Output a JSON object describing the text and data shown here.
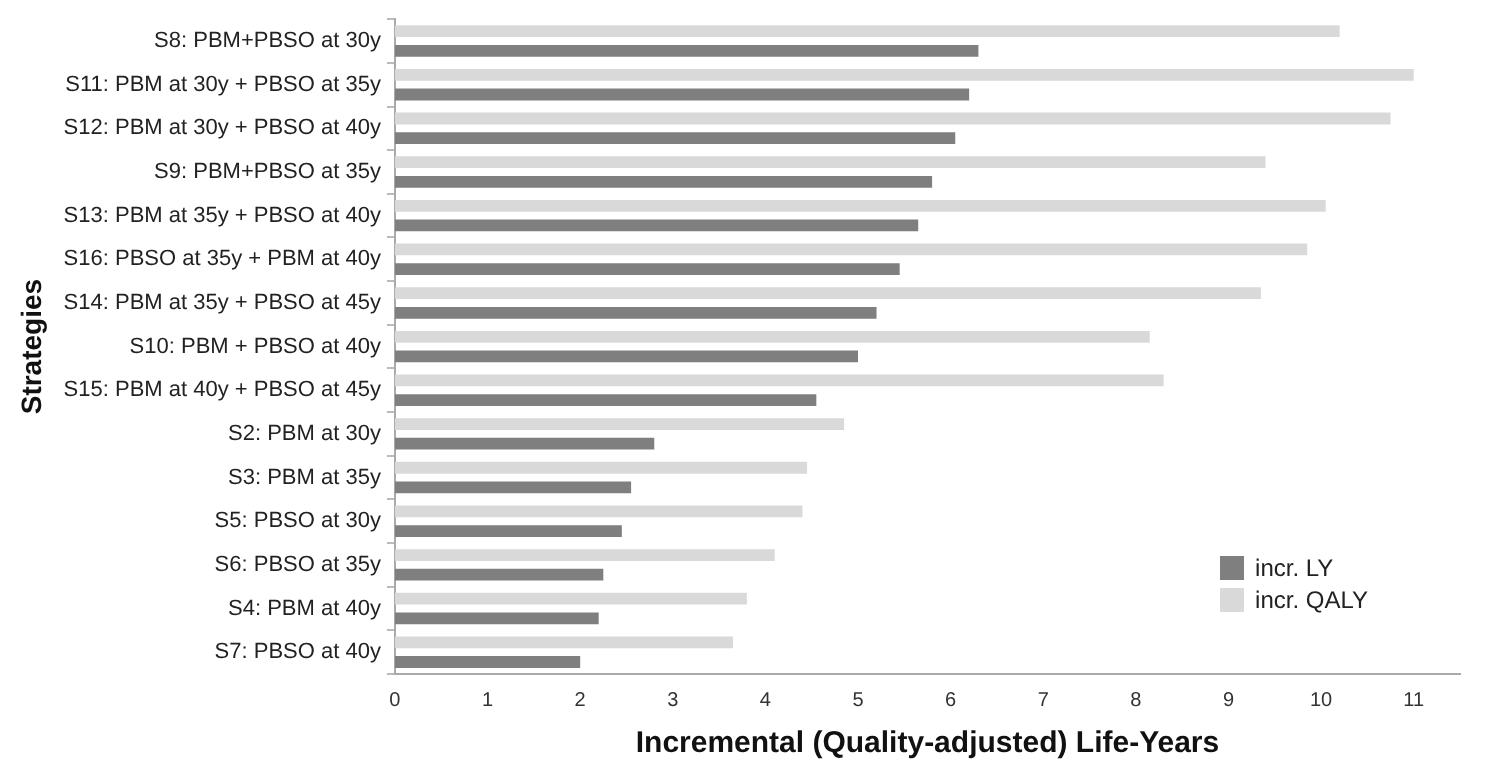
{
  "chart_data": {
    "type": "bar",
    "orientation": "horizontal",
    "xlabel": "Incremental (Quality-adjusted) Life-Years",
    "ylabel": "Strategies",
    "categories": [
      "S8: PBM+PBSO at 30y",
      "S11: PBM at 30y + PBSO at 35y",
      "S12: PBM at 30y + PBSO at 40y",
      "S9: PBM+PBSO at 35y",
      "S13: PBM at 35y + PBSO at 40y",
      "S16: PBSO at 35y + PBM at 40y",
      "S14: PBM at 35y + PBSO at 45y",
      "S10: PBM + PBSO at 40y",
      "S15: PBM at 40y + PBSO at 45y",
      "S2: PBM at 30y",
      "S3: PBM at 35y",
      "S5: PBSO at 30y",
      "S6: PBSO at 35y",
      "S4: PBM at 40y",
      "S7: PBSO at 40y"
    ],
    "series": [
      {
        "name": "incr. LY",
        "color": "#7f7f7f",
        "values": [
          6.3,
          6.2,
          6.05,
          5.8,
          5.65,
          5.45,
          5.2,
          5.0,
          4.55,
          2.8,
          2.55,
          2.45,
          2.25,
          2.2,
          2.0
        ]
      },
      {
        "name": "incr. QALY",
        "color": "#d9d9d9",
        "values": [
          10.2,
          11.0,
          10.75,
          9.4,
          10.05,
          9.85,
          9.35,
          8.15,
          8.3,
          4.85,
          4.45,
          4.4,
          4.1,
          3.8,
          3.65
        ]
      }
    ],
    "xlim": [
      0,
      11.5
    ],
    "xticks": [
      0,
      1,
      2,
      3,
      4,
      5,
      6,
      7,
      8,
      9,
      10,
      11
    ],
    "grid": false,
    "legend": "bottom right"
  }
}
